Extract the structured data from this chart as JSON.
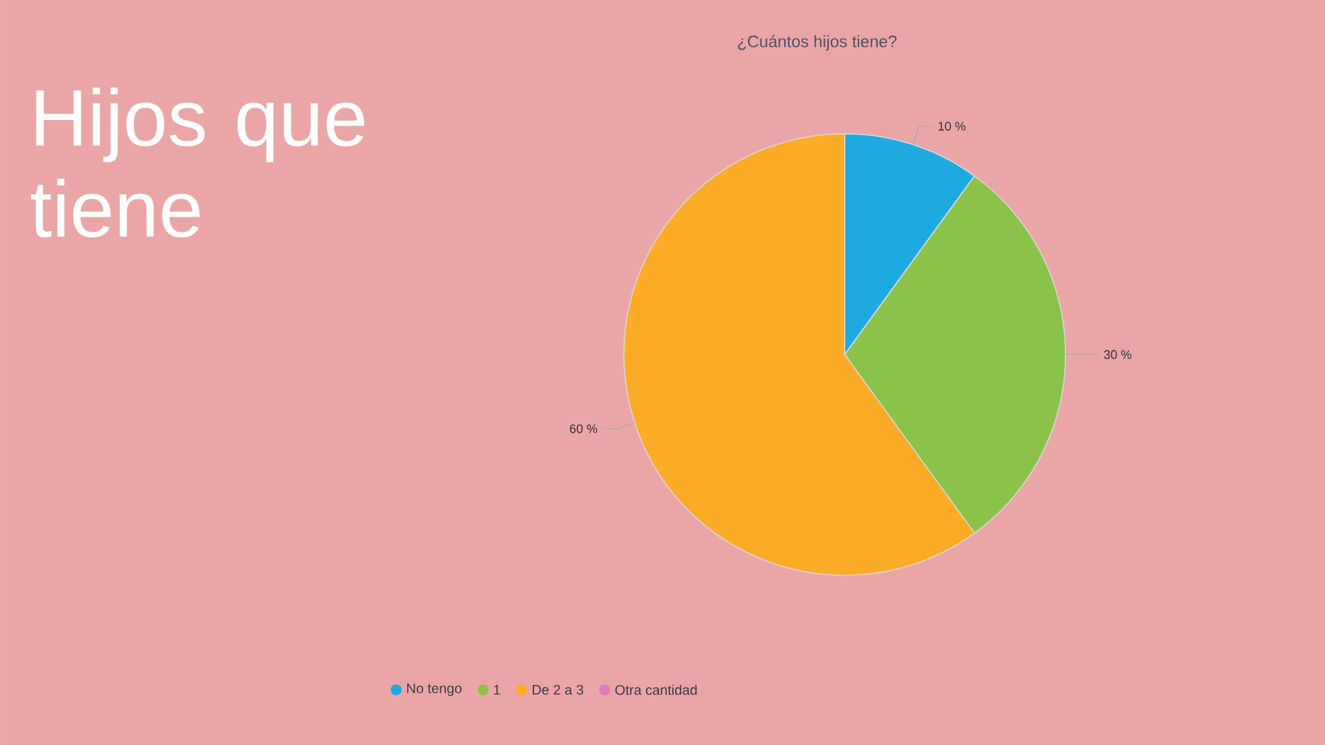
{
  "chart_data": {
    "type": "pie",
    "title": "Hijos que tiene",
    "subtitle": "¿Cuántos hijos tiene?",
    "categories": [
      "No tengo",
      "1",
      "De 2 a 3",
      "Otra cantidad"
    ],
    "values": [
      10,
      30,
      60,
      0
    ],
    "colors": [
      "#1ea9e1",
      "#8bc34a",
      "#fbab25",
      "#e27bbb"
    ],
    "value_labels": [
      "10 %",
      "30 %",
      "60 %",
      null
    ],
    "legend": "bottom"
  }
}
